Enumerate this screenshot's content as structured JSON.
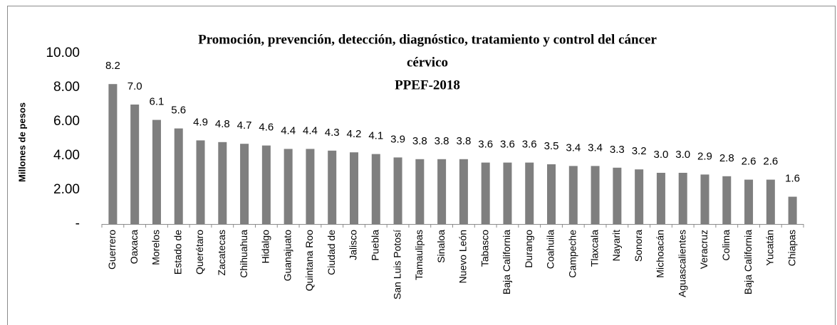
{
  "chart_data": {
    "type": "bar",
    "title": "Promoción, prevención, detección, diagnóstico, tratamiento y control del cáncer",
    "title_line2": "cérvico",
    "subtitle": "PPEF-2018",
    "ylabel": "Millones de pesos",
    "categories": [
      "Guerrero",
      "Oaxaca",
      "Morelos",
      "Estado de",
      "Querétaro",
      "Zacatecas",
      "Chihuahua",
      "Hidalgo",
      "Guanajuato",
      "Quintana Roo",
      "Ciudad de",
      "Jalisco",
      "Puebla",
      "San Luis Potosí",
      "Tamaulipas",
      "Sinaloa",
      "Nuevo León",
      "Tabasco",
      "Baja California",
      "Durango",
      "Coahuila",
      "Campeche",
      "Tlaxcala",
      "Nayarit",
      "Sonora",
      "Michoacán",
      "Aguascalientes",
      "Veracruz",
      "Colima",
      "Baja California",
      "Yucatán",
      "Chiapas"
    ],
    "values": [
      8.2,
      7.0,
      6.1,
      5.6,
      4.9,
      4.8,
      4.7,
      4.6,
      4.4,
      4.4,
      4.3,
      4.2,
      4.1,
      3.9,
      3.8,
      3.8,
      3.8,
      3.6,
      3.6,
      3.6,
      3.5,
      3.4,
      3.4,
      3.3,
      3.2,
      3.0,
      3.0,
      2.9,
      2.8,
      2.6,
      2.6,
      1.6
    ],
    "value_labels": [
      "8.2",
      "7.0",
      "6.1",
      "5.6",
      "4.9",
      "4.8",
      "4.7",
      "4.6",
      "4.4",
      "4.4",
      "4.3",
      "4.2",
      "4.1",
      "3.9",
      "3.8",
      "3.8",
      "3.8",
      "3.6",
      "3.6",
      "3.6",
      "3.5",
      "3.4",
      "3.4",
      "3.3",
      "3.2",
      "3.0",
      "3.0",
      "2.9",
      "2.8",
      "2.6",
      "2.6",
      "1.6"
    ],
    "color": "#7f7f7f",
    "ylim": [
      0,
      10
    ],
    "yticks": [
      {
        "value": 0,
        "label": "-"
      },
      {
        "value": 2,
        "label": "2.00"
      },
      {
        "value": 4,
        "label": "4.00"
      },
      {
        "value": 6,
        "label": "6.00"
      },
      {
        "value": 8,
        "label": "8.00"
      },
      {
        "value": 10,
        "label": "10.00"
      }
    ],
    "grid": false
  }
}
